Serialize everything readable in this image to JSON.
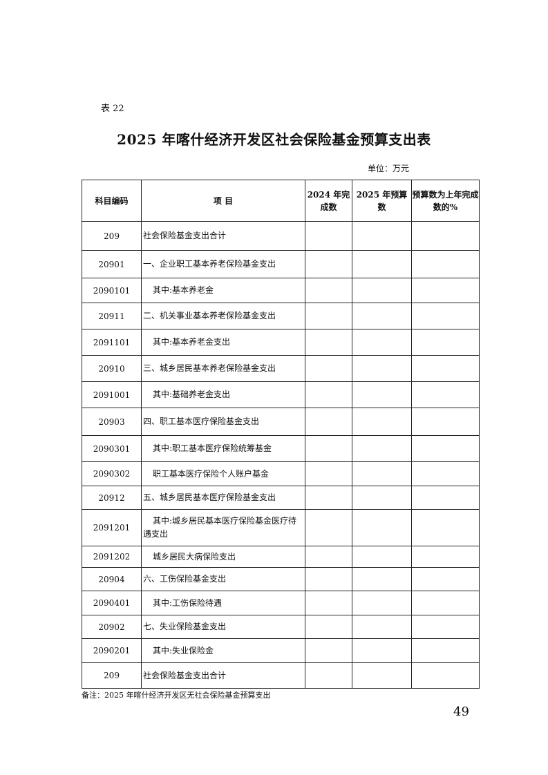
{
  "table_number": "表 22",
  "title": "2025 年喀什经济开发区社会保险基金预算支出表",
  "unit": "单位：万元",
  "columns": [
    "科目编码",
    "项  目",
    "2024 年完成数",
    "2025 年预算数",
    "预算数为上年完成数的%"
  ],
  "rows": [
    {
      "code": "209",
      "item": "社会保险基金支出合计",
      "indent": false,
      "v2024": "",
      "v2025": "",
      "pct": ""
    },
    {
      "code": "20901",
      "item": "一、企业职工基本养老保险基金支出",
      "indent": false,
      "v2024": "",
      "v2025": "",
      "pct": ""
    },
    {
      "code": "2090101",
      "item": "其中:基本养老金",
      "indent": true,
      "v2024": "",
      "v2025": "",
      "pct": ""
    },
    {
      "code": "20911",
      "item": "二、机关事业基本养老保险基金支出",
      "indent": false,
      "v2024": "",
      "v2025": "",
      "pct": ""
    },
    {
      "code": "2091101",
      "item": "其中:基本养老金支出",
      "indent": true,
      "v2024": "",
      "v2025": "",
      "pct": ""
    },
    {
      "code": "20910",
      "item": "三、城乡居民基本养老保险基金支出",
      "indent": false,
      "v2024": "",
      "v2025": "",
      "pct": ""
    },
    {
      "code": "2091001",
      "item": "其中:基础养老金支出",
      "indent": true,
      "v2024": "",
      "v2025": "",
      "pct": ""
    },
    {
      "code": "20903",
      "item": "四、职工基本医疗保险基金支出",
      "indent": false,
      "v2024": "",
      "v2025": "",
      "pct": ""
    },
    {
      "code": "2090301",
      "item": "其中:职工基本医疗保险统筹基金",
      "indent": true,
      "v2024": "",
      "v2025": "",
      "pct": ""
    },
    {
      "code": "2090302",
      "item": "职工基本医疗保险个人账户基金",
      "indent": true,
      "v2024": "",
      "v2025": "",
      "pct": ""
    },
    {
      "code": "20912",
      "item": "五、城乡居民基本医疗保险基金支出",
      "indent": false,
      "v2024": "",
      "v2025": "",
      "pct": ""
    },
    {
      "code": "2091201",
      "item": "其中:城乡居民基本医疗保险基金医疗待遇支出",
      "indent": true,
      "v2024": "",
      "v2025": "",
      "pct": ""
    },
    {
      "code": "2091202",
      "item": "城乡居民大病保险支出",
      "indent": true,
      "v2024": "",
      "v2025": "",
      "pct": ""
    },
    {
      "code": "20904",
      "item": "六、工伤保险基金支出",
      "indent": false,
      "v2024": "",
      "v2025": "",
      "pct": ""
    },
    {
      "code": "2090401",
      "item": "其中:工伤保险待遇",
      "indent": true,
      "v2024": "",
      "v2025": "",
      "pct": ""
    },
    {
      "code": "20902",
      "item": "七、失业保险基金支出",
      "indent": false,
      "v2024": "",
      "v2025": "",
      "pct": ""
    },
    {
      "code": "2090201",
      "item": "其中:失业保险金",
      "indent": true,
      "v2024": "",
      "v2025": "",
      "pct": ""
    },
    {
      "code": "209",
      "item": "社会保险基金支出合计",
      "indent": false,
      "v2024": "",
      "v2025": "",
      "pct": ""
    }
  ],
  "note": "备注：2025 年喀什经济开发区无社会保险基金预算支出",
  "page_number": "49"
}
